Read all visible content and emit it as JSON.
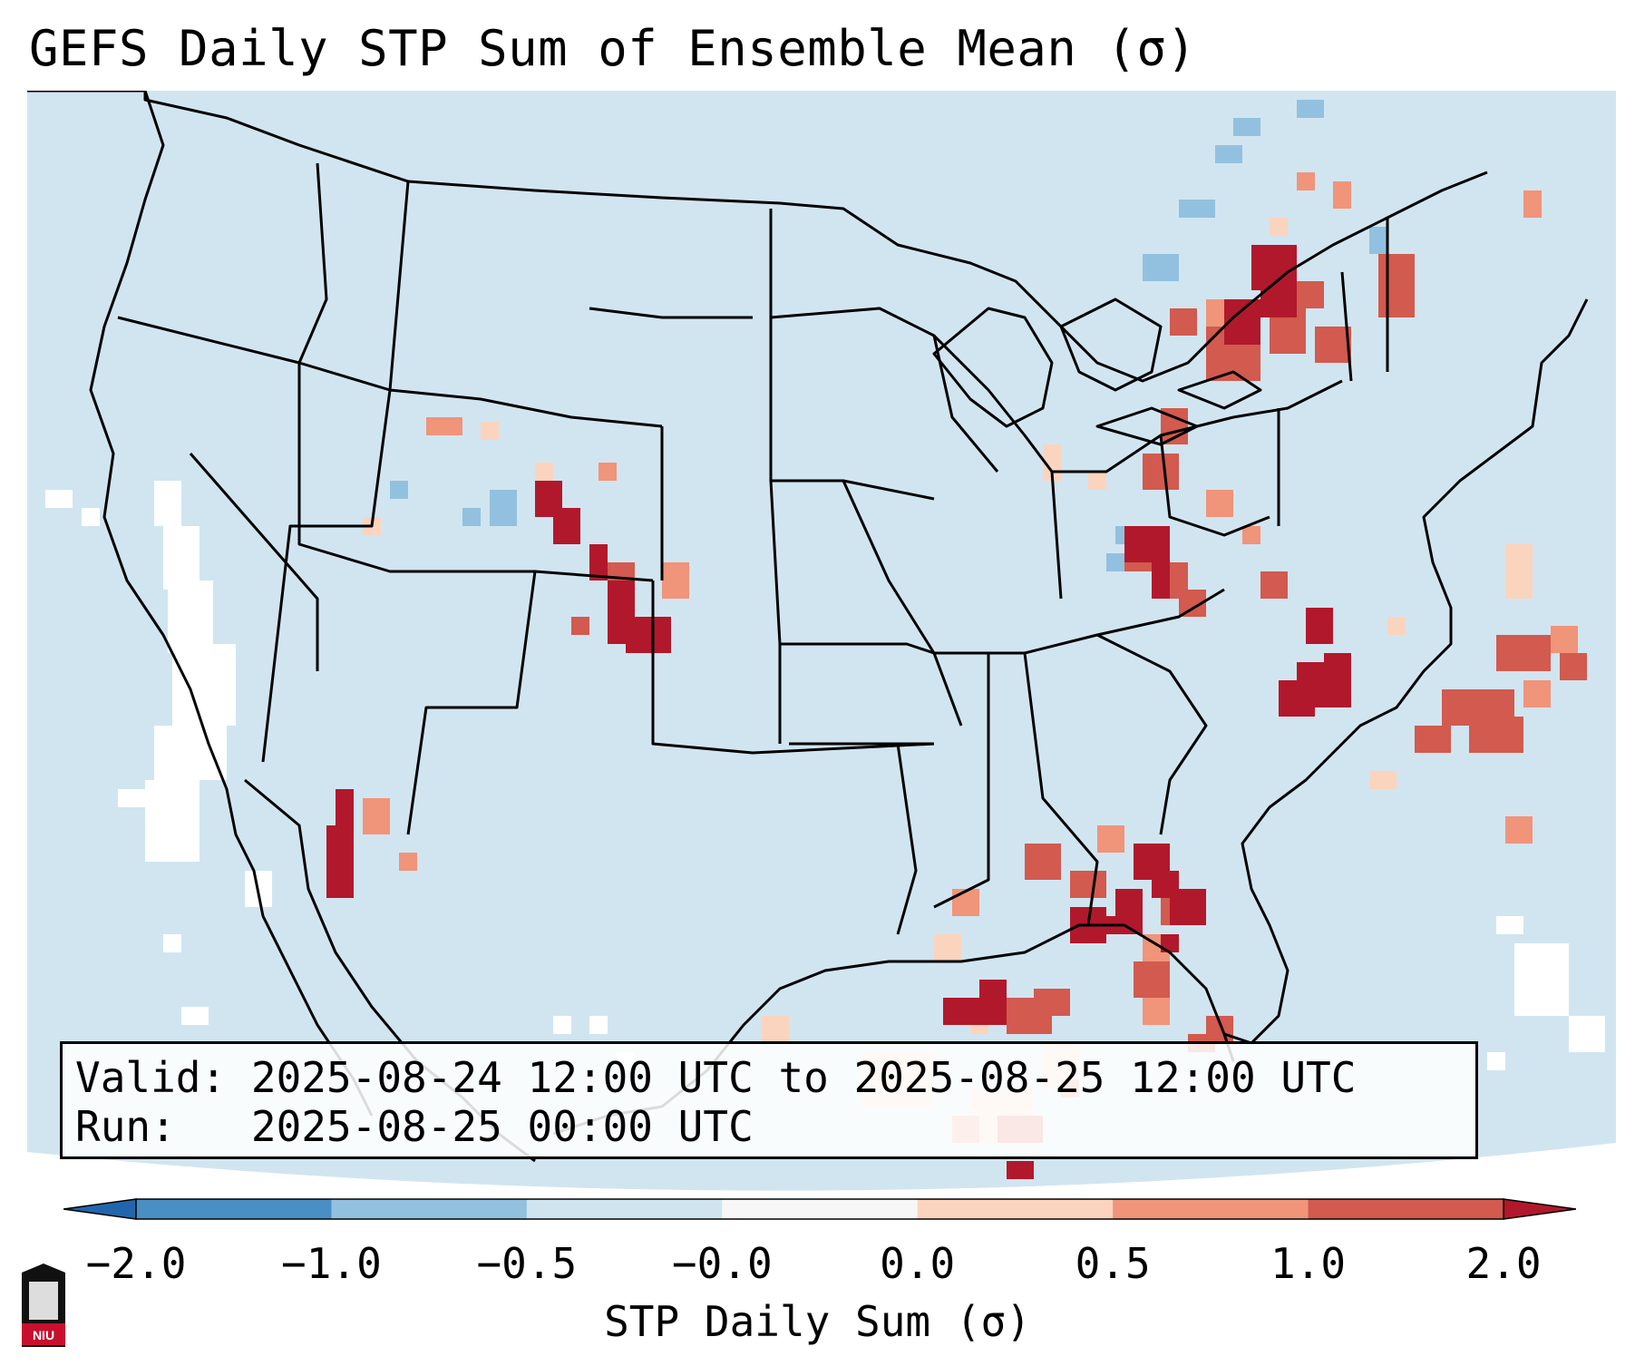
{
  "title": "GEFS Daily STP Sum of Ensemble Mean (σ)",
  "info": {
    "valid_label": "Valid:",
    "valid_value": "2025-08-24 12:00 UTC to 2025-08-25 12:00 UTC",
    "run_label": "Run:",
    "run_value": "2025-08-25 00:00 UTC"
  },
  "colorbar": {
    "label": "STP Daily Sum (σ)",
    "ticks": [
      "−2.0",
      "−1.0",
      "−0.5",
      "−0.0",
      "0.0",
      "0.5",
      "1.0",
      "2.0"
    ],
    "colors": [
      "#4a8fc3",
      "#92c1df",
      "#d0e4f0",
      "#f7f7f7",
      "#fbd4be",
      "#f0947a",
      "#d25a4e"
    ],
    "under_color": "#2166ac",
    "over_color": "#b2182b"
  },
  "map": {
    "background_color": "#d1e5f0",
    "region": "CONUS",
    "highlight_regions": [
      "Colorado Front Range",
      "Arizona / Gulf of California",
      "Alabama",
      "Maryland / West Virginia",
      "New York / St. Lawrence Valley",
      "Gulf of Mexico",
      "Western Atlantic"
    ]
  },
  "logo": {
    "text": "NIU"
  }
}
